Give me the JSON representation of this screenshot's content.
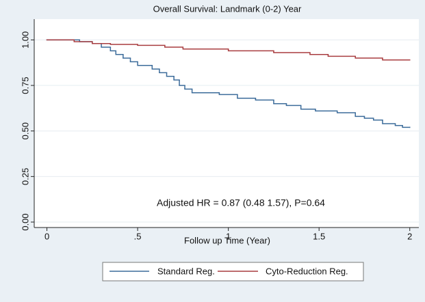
{
  "chart_data": {
    "type": "line",
    "step": "post",
    "title": "Overall Survival: Landmark (0-2) Year",
    "x_label": "Follow up Time (Year)",
    "annotation": "Adjusted HR = 0.87 (0.48  1.57), P=0.64",
    "xlim": [
      -0.07,
      2.05
    ],
    "ylim": [
      -0.03,
      1.114
    ],
    "xticks": [
      0,
      {
        "value": 0.5,
        "label": ".5"
      },
      1,
      1.5,
      2
    ],
    "yticks": [
      {
        "value": 0,
        "label": "0.00"
      },
      {
        "value": 0.25,
        "label": "0.25"
      },
      {
        "value": 0.5,
        "label": "0.50"
      },
      {
        "value": 0.75,
        "label": "0.75"
      },
      {
        "value": 1,
        "label": "1.00"
      }
    ],
    "grid": true,
    "series": [
      {
        "name": "Standard Reg.",
        "color": "#3b6b9a",
        "x": [
          0,
          0.18,
          0.25,
          0.3,
          0.35,
          0.38,
          0.42,
          0.46,
          0.5,
          0.58,
          0.62,
          0.66,
          0.7,
          0.73,
          0.76,
          0.8,
          0.95,
          1.05,
          1.15,
          1.25,
          1.32,
          1.4,
          1.48,
          1.6,
          1.7,
          1.75,
          1.8,
          1.85,
          1.92,
          1.96,
          2
        ],
        "values": [
          1,
          0.99,
          0.98,
          0.96,
          0.94,
          0.92,
          0.9,
          0.88,
          0.86,
          0.84,
          0.82,
          0.8,
          0.78,
          0.75,
          0.73,
          0.71,
          0.7,
          0.68,
          0.67,
          0.65,
          0.64,
          0.62,
          0.61,
          0.6,
          0.58,
          0.57,
          0.56,
          0.54,
          0.53,
          0.52,
          0.52
        ]
      },
      {
        "name": "Cyto-Reduction Reg.",
        "color": "#a83c3f",
        "x": [
          0,
          0.15,
          0.25,
          0.35,
          0.5,
          0.65,
          0.75,
          1,
          1.25,
          1.45,
          1.55,
          1.7,
          1.85,
          2
        ],
        "values": [
          1,
          0.99,
          0.98,
          0.975,
          0.97,
          0.96,
          0.95,
          0.94,
          0.93,
          0.92,
          0.91,
          0.9,
          0.89,
          0.89
        ]
      }
    ]
  }
}
